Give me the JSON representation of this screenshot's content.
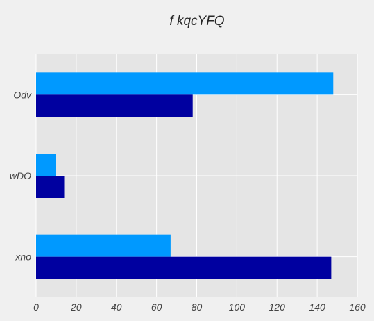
{
  "chart_data": {
    "type": "bar",
    "orientation": "horizontal",
    "title": "f kqcYFQ",
    "xlabel": "",
    "ylabel": "",
    "categories": [
      "Odv",
      "wDO",
      "xno"
    ],
    "series": [
      {
        "values": [
          148,
          10,
          67
        ],
        "color": "#0099ff"
      },
      {
        "values": [
          78,
          14,
          147
        ],
        "color": "#0000a0"
      }
    ],
    "xlim": [
      0,
      160
    ],
    "xticks": [
      0,
      20,
      40,
      60,
      80,
      100,
      120,
      140,
      160
    ],
    "grid": true,
    "legend": "none",
    "plot_background": "#e5e5e5",
    "grid_color": "#ffffff"
  }
}
